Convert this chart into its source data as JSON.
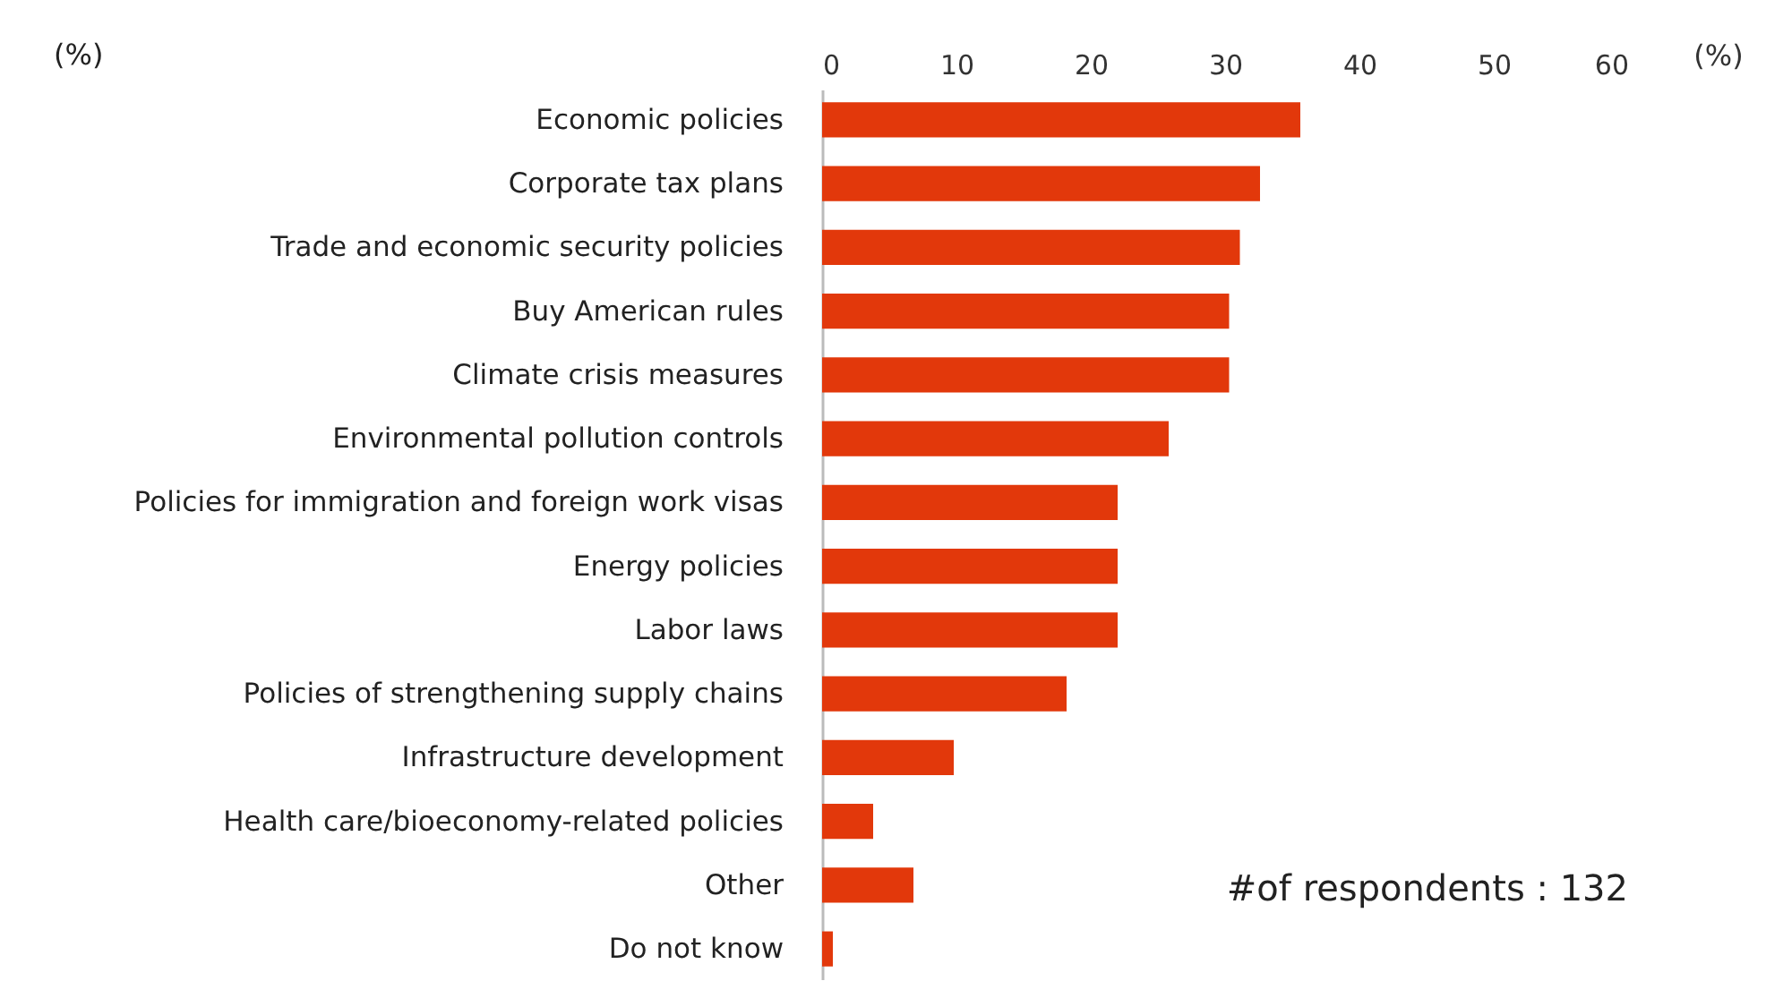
{
  "chart_data": {
    "type": "bar",
    "orientation": "horizontal",
    "xlabel": "(%)",
    "categories": [
      "Economic policies",
      "Corporate tax plans",
      "Trade and economic security policies",
      "Buy American rules",
      "Climate crisis measures",
      "Environmental pollution controls",
      "Policies for immigration and foreign work visas",
      "Energy policies",
      "Labor laws",
      "Policies of strengthening supply chains",
      "Infrastructure development",
      "Health care/bioeconomy-related policies",
      "Other",
      "Do not know"
    ],
    "values": [
      35.6,
      32.6,
      31.1,
      30.3,
      30.3,
      25.8,
      22.0,
      22.0,
      22.0,
      18.2,
      9.8,
      3.8,
      6.8,
      0.8
    ],
    "color": "#e2380b",
    "xlim": [
      0,
      60
    ],
    "xticks": [
      0,
      10,
      20,
      30,
      40,
      50,
      60
    ],
    "grid": false,
    "annotations": [
      "(%)",
      "#of respondents : 132"
    ]
  }
}
